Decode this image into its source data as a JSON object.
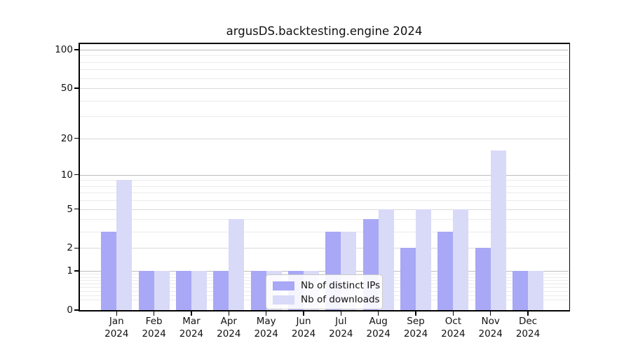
{
  "title": "argusDS.backtesting.engine 2024",
  "legend": {
    "items": [
      {
        "label": "Nb of distinct IPs",
        "color": "#a8a8f6"
      },
      {
        "label": "Nb of downloads",
        "color": "#d9d9f8"
      }
    ]
  },
  "colors": {
    "distinct_ips_bar": "#a8a8f6",
    "downloads_bar": "#d9d9f8",
    "grid_major": "#bdbdbd",
    "grid_mid": "#d9d9d9",
    "grid_minor": "#ebebeb",
    "spine": "#000000",
    "text": "#111111",
    "legend_border": "#cccccc",
    "background": "#ffffff"
  },
  "chart_data": {
    "type": "bar",
    "title": "argusDS.backtesting.engine 2024",
    "categories": [
      "Jan 2024",
      "Feb 2024",
      "Mar 2024",
      "Apr 2024",
      "May 2024",
      "Jun 2024",
      "Jul 2024",
      "Aug 2024",
      "Sep 2024",
      "Oct 2024",
      "Nov 2024",
      "Dec 2024"
    ],
    "series": [
      {
        "name": "Nb of distinct IPs",
        "values": [
          3,
          1,
          1,
          1,
          1,
          1,
          3,
          4,
          2,
          3,
          2,
          1
        ]
      },
      {
        "name": "Nb of downloads",
        "values": [
          9,
          1,
          1,
          4,
          1,
          1,
          3,
          5,
          5,
          5,
          16,
          1
        ]
      }
    ],
    "xlabel": "",
    "ylabel": "",
    "yscale": "log1p",
    "yticks": [
      0,
      1,
      2,
      5,
      10,
      20,
      50,
      100
    ],
    "ylim": [
      0,
      113
    ],
    "grid": true,
    "gridlines": {
      "major": [
        1,
        10,
        100
      ],
      "labeled_minor": [
        2,
        5,
        20,
        50
      ],
      "minor": [
        0.2,
        0.3,
        0.4,
        0.5,
        0.6,
        0.7,
        0.8,
        0.9,
        3,
        4,
        6,
        7,
        8,
        9,
        30,
        40,
        60,
        70,
        80,
        90
      ]
    },
    "legend_position": "lower center"
  }
}
